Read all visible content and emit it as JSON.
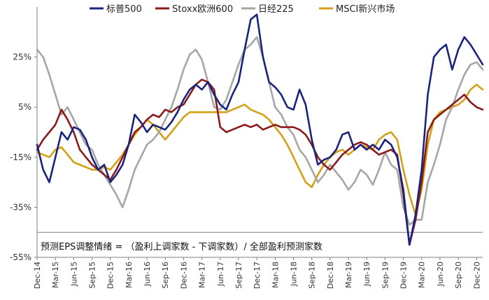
{
  "chart_data": {
    "type": "line",
    "title": "",
    "xlabel": "",
    "ylabel": "",
    "annotation": "预测EPS调整情绪 = （盈利上调家数 - 下调家数）/ 全部盈利预测家数",
    "ylim": [
      -55,
      45
    ],
    "y_ticks": [
      -55,
      -35,
      -15,
      5,
      25
    ],
    "y_tick_labels": [
      "-55%",
      "-35%",
      "-15%",
      "5%",
      "25%"
    ],
    "x_range": [
      0,
      73
    ],
    "x_ticks": [
      0,
      3,
      6,
      9,
      12,
      15,
      18,
      21,
      24,
      27,
      30,
      33,
      36,
      39,
      42,
      45,
      48,
      51,
      54,
      57,
      60,
      63,
      66,
      69,
      72
    ],
    "x_tick_labels": [
      "Dec-14",
      "Mar-15",
      "Jun-15",
      "Sep-15",
      "Dec-15",
      "Mar-16",
      "Jun-16",
      "Sep-16",
      "Dec-16",
      "Mar-17",
      "Jun-17",
      "Sep-17",
      "Dec-17",
      "Mar-18",
      "Jun-18",
      "Sep-18",
      "Dec-18",
      "Mar-19",
      "Jun-19",
      "Sep-19",
      "Dec-19",
      "Mar-20",
      "Jun-20",
      "Sep-20",
      "Dec-20"
    ],
    "legend_position": "top",
    "series": [
      {
        "name": "标普500",
        "color": "#1a237e",
        "points": [
          [
            0,
            -10
          ],
          [
            1,
            -20
          ],
          [
            2,
            -25
          ],
          [
            3,
            -15
          ],
          [
            4,
            -5
          ],
          [
            5,
            -8
          ],
          [
            6,
            -3
          ],
          [
            7,
            -4
          ],
          [
            8,
            -8
          ],
          [
            9,
            -15
          ],
          [
            10,
            -20
          ],
          [
            11,
            -18
          ],
          [
            12,
            -25
          ],
          [
            13,
            -22
          ],
          [
            14,
            -18
          ],
          [
            15,
            -10
          ],
          [
            16,
            2
          ],
          [
            17,
            -1
          ],
          [
            18,
            -5
          ],
          [
            19,
            -2
          ],
          [
            20,
            -3
          ],
          [
            21,
            -4
          ],
          [
            22,
            -1
          ],
          [
            23,
            3
          ],
          [
            24,
            8
          ],
          [
            25,
            12
          ],
          [
            26,
            14
          ],
          [
            27,
            12
          ],
          [
            28,
            15
          ],
          [
            29,
            10
          ],
          [
            30,
            6
          ],
          [
            31,
            4
          ],
          [
            32,
            10
          ],
          [
            33,
            15
          ],
          [
            34,
            28
          ],
          [
            35,
            40
          ],
          [
            36,
            42
          ],
          [
            37,
            25
          ],
          [
            38,
            15
          ],
          [
            39,
            13
          ],
          [
            40,
            10
          ],
          [
            41,
            5
          ],
          [
            42,
            4
          ],
          [
            43,
            12
          ],
          [
            44,
            6
          ],
          [
            45,
            -8
          ],
          [
            46,
            -18
          ],
          [
            47,
            -16
          ],
          [
            48,
            -15
          ],
          [
            49,
            -12
          ],
          [
            50,
            -6
          ],
          [
            51,
            -5
          ],
          [
            52,
            -12
          ],
          [
            53,
            -10
          ],
          [
            54,
            -12
          ],
          [
            55,
            -10
          ],
          [
            56,
            -12
          ],
          [
            57,
            -8
          ],
          [
            58,
            -10
          ],
          [
            59,
            -15
          ],
          [
            60,
            -28
          ],
          [
            61,
            -50
          ],
          [
            62,
            -38
          ],
          [
            63,
            -20
          ],
          [
            64,
            10
          ],
          [
            65,
            25
          ],
          [
            66,
            28
          ],
          [
            67,
            30
          ],
          [
            68,
            20
          ],
          [
            69,
            28
          ],
          [
            70,
            33
          ],
          [
            71,
            30
          ],
          [
            72,
            26
          ],
          [
            73,
            22
          ]
        ]
      },
      {
        "name": "Stoxx欧洲600",
        "color": "#8b1a1a",
        "points": [
          [
            0,
            -12
          ],
          [
            1,
            -8
          ],
          [
            2,
            -5
          ],
          [
            3,
            -2
          ],
          [
            4,
            4
          ],
          [
            5,
            0
          ],
          [
            6,
            -5
          ],
          [
            7,
            -12
          ],
          [
            8,
            -15
          ],
          [
            9,
            -18
          ],
          [
            10,
            -20
          ],
          [
            11,
            -22
          ],
          [
            12,
            -24
          ],
          [
            13,
            -20
          ],
          [
            14,
            -15
          ],
          [
            15,
            -10
          ],
          [
            16,
            -5
          ],
          [
            17,
            -3
          ],
          [
            18,
            0
          ],
          [
            19,
            2
          ],
          [
            20,
            1
          ],
          [
            21,
            4
          ],
          [
            22,
            3
          ],
          [
            23,
            5
          ],
          [
            24,
            6
          ],
          [
            25,
            10
          ],
          [
            26,
            14
          ],
          [
            27,
            16
          ],
          [
            28,
            15
          ],
          [
            29,
            12
          ],
          [
            30,
            -3
          ],
          [
            31,
            -5
          ],
          [
            32,
            -4
          ],
          [
            33,
            -3
          ],
          [
            34,
            -2
          ],
          [
            35,
            -3
          ],
          [
            36,
            -2
          ],
          [
            37,
            -4
          ],
          [
            38,
            -3
          ],
          [
            39,
            -2
          ],
          [
            40,
            -3
          ],
          [
            41,
            -3
          ],
          [
            42,
            -3
          ],
          [
            43,
            -4
          ],
          [
            44,
            -6
          ],
          [
            45,
            -10
          ],
          [
            46,
            -15
          ],
          [
            47,
            -18
          ],
          [
            48,
            -20
          ],
          [
            49,
            -17
          ],
          [
            50,
            -14
          ],
          [
            51,
            -12
          ],
          [
            52,
            -10
          ],
          [
            53,
            -9
          ],
          [
            54,
            -10
          ],
          [
            55,
            -12
          ],
          [
            56,
            -14
          ],
          [
            57,
            -13
          ],
          [
            58,
            -12
          ],
          [
            59,
            -14
          ],
          [
            60,
            -30
          ],
          [
            61,
            -50
          ],
          [
            62,
            -40
          ],
          [
            63,
            -25
          ],
          [
            64,
            -5
          ],
          [
            65,
            0
          ],
          [
            66,
            2
          ],
          [
            67,
            4
          ],
          [
            68,
            6
          ],
          [
            69,
            8
          ],
          [
            70,
            10
          ],
          [
            71,
            7
          ],
          [
            72,
            5
          ],
          [
            73,
            4
          ]
        ]
      },
      {
        "name": "日经225",
        "color": "#a6a6a6",
        "points": [
          [
            0,
            28
          ],
          [
            1,
            25
          ],
          [
            2,
            18
          ],
          [
            3,
            10
          ],
          [
            4,
            2
          ],
          [
            5,
            5
          ],
          [
            6,
            0
          ],
          [
            7,
            -5
          ],
          [
            8,
            -10
          ],
          [
            9,
            -12
          ],
          [
            10,
            -18
          ],
          [
            11,
            -22
          ],
          [
            12,
            -26
          ],
          [
            13,
            -30
          ],
          [
            14,
            -35
          ],
          [
            15,
            -28
          ],
          [
            16,
            -20
          ],
          [
            17,
            -15
          ],
          [
            18,
            -10
          ],
          [
            19,
            -8
          ],
          [
            20,
            -5
          ],
          [
            21,
            0
          ],
          [
            22,
            5
          ],
          [
            23,
            12
          ],
          [
            24,
            20
          ],
          [
            25,
            26
          ],
          [
            26,
            28
          ],
          [
            27,
            24
          ],
          [
            28,
            15
          ],
          [
            29,
            5
          ],
          [
            30,
            4
          ],
          [
            31,
            8
          ],
          [
            32,
            15
          ],
          [
            33,
            22
          ],
          [
            34,
            28
          ],
          [
            35,
            30
          ],
          [
            36,
            33
          ],
          [
            37,
            25
          ],
          [
            38,
            15
          ],
          [
            39,
            5
          ],
          [
            40,
            2
          ],
          [
            41,
            -3
          ],
          [
            42,
            -6
          ],
          [
            43,
            -12
          ],
          [
            44,
            -15
          ],
          [
            45,
            -20
          ],
          [
            46,
            -25
          ],
          [
            47,
            -22
          ],
          [
            48,
            -18
          ],
          [
            49,
            -21
          ],
          [
            50,
            -24
          ],
          [
            51,
            -28
          ],
          [
            52,
            -25
          ],
          [
            53,
            -20
          ],
          [
            54,
            -22
          ],
          [
            55,
            -26
          ],
          [
            56,
            -20
          ],
          [
            57,
            -13
          ],
          [
            58,
            -18
          ],
          [
            59,
            -20
          ],
          [
            60,
            -35
          ],
          [
            61,
            -42
          ],
          [
            62,
            -40
          ],
          [
            63,
            -40
          ],
          [
            64,
            -25
          ],
          [
            65,
            -18
          ],
          [
            66,
            -10
          ],
          [
            67,
            0
          ],
          [
            68,
            5
          ],
          [
            69,
            12
          ],
          [
            70,
            18
          ],
          [
            71,
            22
          ],
          [
            72,
            23
          ],
          [
            73,
            20
          ]
        ]
      },
      {
        "name": "MSCI新兴市场",
        "color": "#d4a017",
        "points": [
          [
            0,
            -13
          ],
          [
            1,
            -14
          ],
          [
            2,
            -15
          ],
          [
            3,
            -12
          ],
          [
            4,
            -11
          ],
          [
            5,
            -14
          ],
          [
            6,
            -17
          ],
          [
            7,
            -18
          ],
          [
            8,
            -19
          ],
          [
            9,
            -20
          ],
          [
            10,
            -20
          ],
          [
            11,
            -19
          ],
          [
            12,
            -20
          ],
          [
            13,
            -17
          ],
          [
            14,
            -14
          ],
          [
            15,
            -10
          ],
          [
            16,
            -6
          ],
          [
            17,
            -3
          ],
          [
            18,
            0
          ],
          [
            19,
            -2
          ],
          [
            20,
            -5
          ],
          [
            21,
            -8
          ],
          [
            22,
            -5
          ],
          [
            23,
            -2
          ],
          [
            24,
            1
          ],
          [
            25,
            3
          ],
          [
            26,
            3
          ],
          [
            27,
            3
          ],
          [
            28,
            3
          ],
          [
            29,
            3
          ],
          [
            30,
            3
          ],
          [
            31,
            3
          ],
          [
            32,
            4
          ],
          [
            33,
            5
          ],
          [
            34,
            6
          ],
          [
            35,
            4
          ],
          [
            36,
            3
          ],
          [
            37,
            2
          ],
          [
            38,
            0
          ],
          [
            39,
            -3
          ],
          [
            40,
            -6
          ],
          [
            41,
            -10
          ],
          [
            42,
            -15
          ],
          [
            43,
            -20
          ],
          [
            44,
            -25
          ],
          [
            45,
            -27
          ],
          [
            46,
            -22
          ],
          [
            47,
            -18
          ],
          [
            48,
            -15
          ],
          [
            49,
            -13
          ],
          [
            50,
            -12
          ],
          [
            51,
            -14
          ],
          [
            52,
            -12
          ],
          [
            53,
            -10
          ],
          [
            54,
            -11
          ],
          [
            55,
            -12
          ],
          [
            56,
            -8
          ],
          [
            57,
            -6
          ],
          [
            58,
            -5
          ],
          [
            59,
            -8
          ],
          [
            60,
            -20
          ],
          [
            61,
            -30
          ],
          [
            62,
            -38
          ],
          [
            63,
            -28
          ],
          [
            64,
            -10
          ],
          [
            65,
            0
          ],
          [
            66,
            3
          ],
          [
            67,
            4
          ],
          [
            68,
            5
          ],
          [
            69,
            6
          ],
          [
            70,
            8
          ],
          [
            71,
            12
          ],
          [
            72,
            14
          ],
          [
            73,
            12
          ]
        ]
      }
    ]
  }
}
